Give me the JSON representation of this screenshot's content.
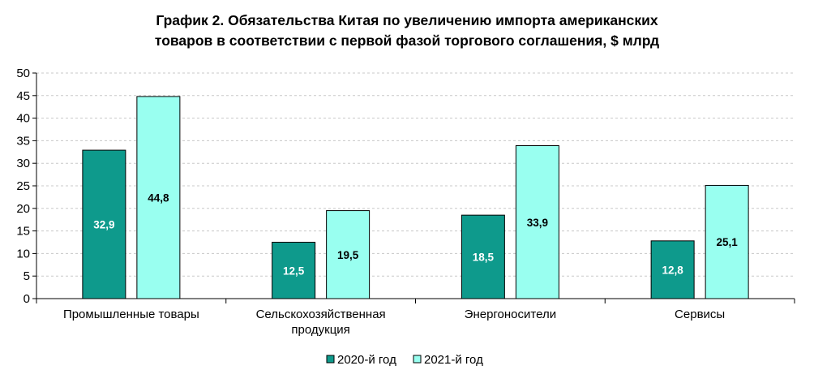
{
  "chart_data": {
    "type": "bar",
    "title_lines": [
      "График 2. Обязательства Китая по увеличению импорта американских",
      "товаров в соответствии с первой фазой торгового соглашения, $ млрд"
    ],
    "categories": [
      [
        "Промышленные товары"
      ],
      [
        "Сельскохозяйственная",
        "продукция"
      ],
      [
        "Энергоносители"
      ],
      [
        "Сервисы"
      ]
    ],
    "series": [
      {
        "name": "2020-й год",
        "values": [
          32.9,
          12.5,
          18.5,
          12.8
        ],
        "labels": [
          "32,9",
          "12,5",
          "18,5",
          "12,8"
        ],
        "color": "#0e9a8c",
        "label_color": "#ffffff"
      },
      {
        "name": "2021-й год",
        "values": [
          44.8,
          19.5,
          33.9,
          25.1
        ],
        "labels": [
          "44,8",
          "19,5",
          "33,9",
          "25,1"
        ],
        "color": "#99fff0",
        "label_color": "#000000"
      }
    ],
    "yticks": [
      "0",
      "5",
      "10",
      "15",
      "20",
      "25",
      "30",
      "35",
      "40",
      "45",
      "50"
    ],
    "ylim": [
      0,
      50
    ],
    "xlabel": "",
    "ylabel": "",
    "grid": true,
    "legend_position": "bottom-center"
  }
}
